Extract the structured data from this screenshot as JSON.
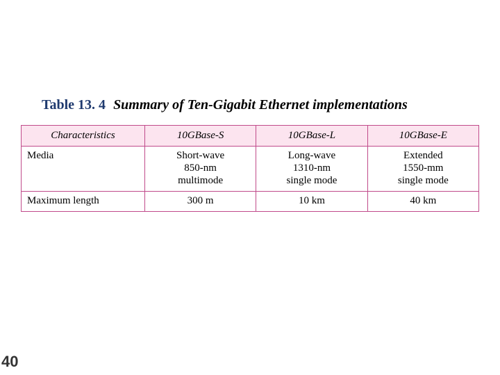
{
  "caption": {
    "label": "Table 13. 4",
    "title": "Summary of Ten-Gigabit Ethernet implementations"
  },
  "table": {
    "type": "table",
    "header_bg": "#fce4ef",
    "border_color": "#c04a8a",
    "columns": [
      {
        "label": "Characteristics",
        "align": "left",
        "width_pct": 27
      },
      {
        "label": "10GBase-S",
        "align": "center",
        "width_pct": 24.33
      },
      {
        "label": "10GBase-L",
        "align": "center",
        "width_pct": 24.33
      },
      {
        "label": "10GBase-E",
        "align": "center",
        "width_pct": 24.33
      }
    ],
    "rows": [
      {
        "head": "Media",
        "cells": [
          "Short-wave\n850-nm\nmultimode",
          "Long-wave\n1310-nm\nsingle mode",
          "Extended\n1550-mm\nsingle mode"
        ]
      },
      {
        "head": "Maximum length",
        "cells": [
          "300 m",
          "10 km",
          "40 km"
        ]
      }
    ],
    "font_size_pt": 15
  },
  "page_number": "40"
}
